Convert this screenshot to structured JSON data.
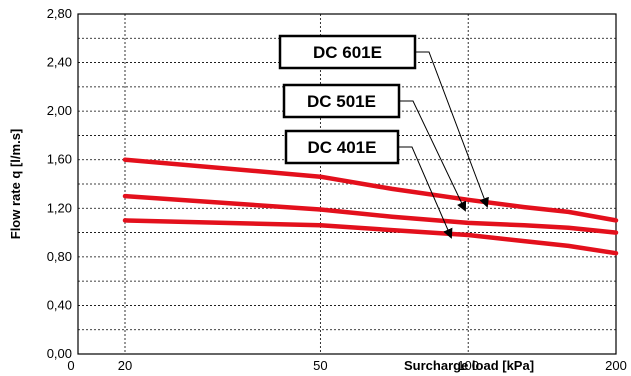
{
  "chart_data": {
    "type": "line",
    "xlabel": "Surcharge load [kPa]",
    "ylabel": "Flow rate q  [l/m.s]",
    "xlim": [
      0,
      200
    ],
    "ylim": [
      0,
      2.8
    ],
    "x_ticks": [
      "0",
      "20",
      "50",
      "100",
      "200"
    ],
    "y_ticks": [
      "0,00",
      "0,40",
      "0,80",
      "1,20",
      "1,60",
      "2,00",
      "2,40",
      "2,80"
    ],
    "grid": true,
    "series": [
      {
        "name": "DC 601E",
        "x": [
          20,
          50,
          70,
          100,
          130,
          160,
          200
        ],
        "y": [
          1.6,
          1.46,
          1.36,
          1.27,
          1.21,
          1.17,
          1.1
        ]
      },
      {
        "name": "DC 501E",
        "x": [
          20,
          50,
          70,
          100,
          130,
          160,
          200
        ],
        "y": [
          1.3,
          1.19,
          1.13,
          1.08,
          1.06,
          1.04,
          1.0
        ]
      },
      {
        "name": "DC 401E",
        "x": [
          20,
          50,
          70,
          100,
          130,
          160,
          200
        ],
        "y": [
          1.1,
          1.06,
          1.02,
          0.98,
          0.93,
          0.89,
          0.83
        ]
      }
    ],
    "colors": {
      "series": "#e3101c",
      "grid": "#000000",
      "background": "#ffffff"
    }
  }
}
